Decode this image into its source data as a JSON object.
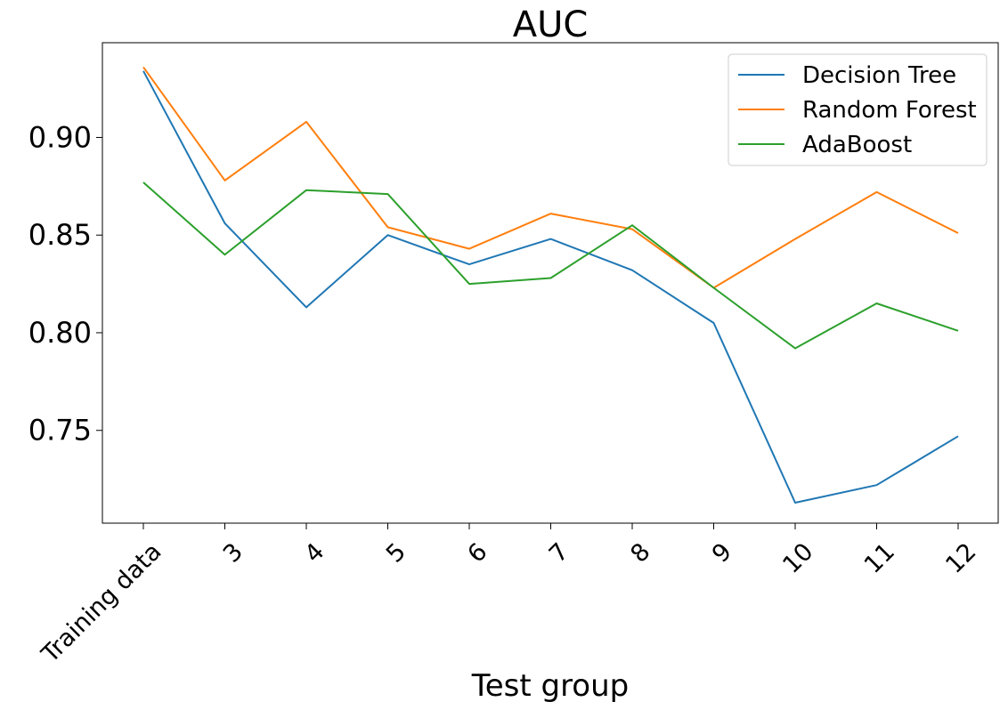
{
  "chart_data": {
    "type": "line",
    "title": "AUC",
    "xlabel": "Test group",
    "ylabel": "",
    "categories": [
      "Training data",
      "3",
      "4",
      "5",
      "6",
      "7",
      "8",
      "9",
      "10",
      "11",
      "12"
    ],
    "ylim": [
      0.7025,
      0.9485
    ],
    "yticks": [
      0.75,
      0.8,
      0.85,
      0.9
    ],
    "ytick_labels": [
      "0.75",
      "0.80",
      "0.85",
      "0.90"
    ],
    "grid": false,
    "legend_position": "top-right",
    "series": [
      {
        "name": "Decision Tree",
        "color": "#1f77b4",
        "values": [
          0.934,
          0.856,
          0.813,
          0.85,
          0.835,
          0.848,
          0.832,
          0.805,
          0.713,
          0.722,
          0.747
        ]
      },
      {
        "name": "Random Forest",
        "color": "#ff7f0e",
        "values": [
          0.936,
          0.878,
          0.908,
          0.854,
          0.843,
          0.861,
          0.853,
          0.823,
          0.848,
          0.872,
          0.851
        ]
      },
      {
        "name": "AdaBoost",
        "color": "#2ca02c",
        "values": [
          0.877,
          0.84,
          0.873,
          0.871,
          0.825,
          0.828,
          0.855,
          0.823,
          0.792,
          0.815,
          0.801
        ]
      }
    ]
  }
}
